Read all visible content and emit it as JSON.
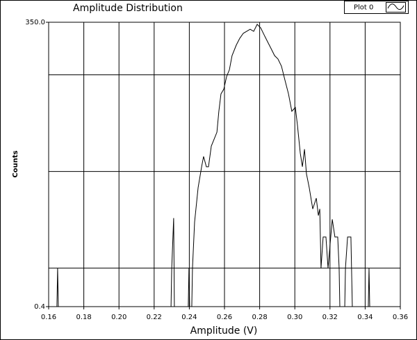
{
  "chart_data": {
    "type": "line",
    "title": "Amplitude Distribution",
    "xlabel": "Amplitude (V)",
    "ylabel": "Counts",
    "yscale": "log",
    "grid": true,
    "legend": "top-right",
    "xlim": [
      0.16,
      0.36
    ],
    "xticks": [
      {
        "value": 0.16,
        "label": "0.16"
      },
      {
        "value": 0.18,
        "label": "0.18"
      },
      {
        "value": 0.2,
        "label": "0.20"
      },
      {
        "value": 0.22,
        "label": "0.22"
      },
      {
        "value": 0.24,
        "label": "0.24"
      },
      {
        "value": 0.26,
        "label": "0.26"
      },
      {
        "value": 0.28,
        "label": "0.28"
      },
      {
        "value": 0.3,
        "label": "0.30"
      },
      {
        "value": 0.32,
        "label": "0.32"
      },
      {
        "value": 0.34,
        "label": "0.34"
      },
      {
        "value": 0.36,
        "label": "0.36"
      }
    ],
    "ylim": [
      0.4,
      350
    ],
    "yticks": [
      {
        "value": 0.4,
        "label": "0.4"
      },
      {
        "value": 350,
        "label": "350.0"
      }
    ],
    "ygrid": [
      1,
      10,
      100
    ],
    "x": [
      0.16,
      0.1647,
      0.1651,
      0.1655,
      0.2296,
      0.23,
      0.2311,
      0.2315,
      0.2394,
      0.2398,
      0.2402,
      0.2414,
      0.2418,
      0.243,
      0.245,
      0.247,
      0.2481,
      0.2497,
      0.2509,
      0.2525,
      0.2541,
      0.2557,
      0.2568,
      0.258,
      0.2596,
      0.2612,
      0.2628,
      0.2643,
      0.2667,
      0.2687,
      0.2707,
      0.2726,
      0.2746,
      0.2766,
      0.2786,
      0.2806,
      0.2825,
      0.2845,
      0.2865,
      0.2885,
      0.2904,
      0.2924,
      0.2944,
      0.2964,
      0.2983,
      0.3003,
      0.3015,
      0.3031,
      0.3043,
      0.3055,
      0.3066,
      0.3082,
      0.3102,
      0.3122,
      0.3134,
      0.3142,
      0.3149,
      0.3161,
      0.3177,
      0.3189,
      0.3201,
      0.3213,
      0.3228,
      0.3244,
      0.3252,
      0.3256,
      0.3284,
      0.3288,
      0.33,
      0.3319,
      0.3327,
      0.3418,
      0.3422,
      0.3426,
      0.36
    ],
    "series": [
      {
        "name": "Plot 0",
        "color": "#000000",
        "values": [
          0.4,
          0.4,
          1,
          0.4,
          0.4,
          1,
          3.3,
          0.4,
          0.4,
          1,
          0.4,
          0.4,
          1,
          3.0,
          6.8,
          11.2,
          14.3,
          11.2,
          11.2,
          18.3,
          21.6,
          25.5,
          42,
          63.5,
          71,
          96,
          113,
          158,
          203,
          239,
          269,
          282,
          296,
          282,
          333,
          306,
          260,
          220,
          187,
          158,
          146,
          123,
          88,
          63.5,
          42,
          46,
          30,
          15.5,
          11.2,
          17,
          9.5,
          6.8,
          4.1,
          5.3,
          3.5,
          4.1,
          1,
          2.1,
          2.1,
          1,
          1.8,
          3.2,
          2.1,
          2.1,
          1,
          0.4,
          0.4,
          1,
          2.1,
          2.1,
          0.4,
          0.4,
          1,
          0.4,
          0.4
        ]
      }
    ]
  }
}
